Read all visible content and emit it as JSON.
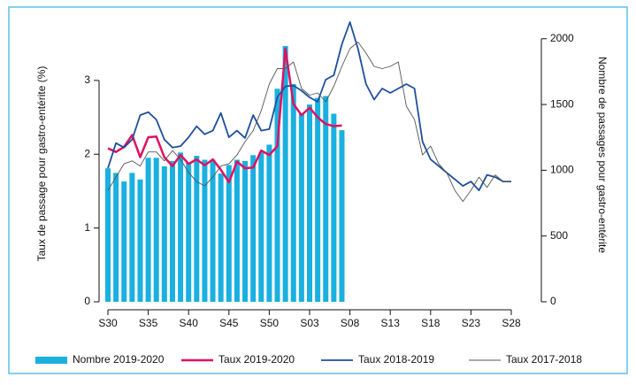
{
  "chart_data": {
    "type": "bar-line",
    "y_label": "Taux de passage pour gastro-entérite (%)",
    "y2_label": "Nombre de passages pour gastro-entérite",
    "categories": [
      "S30",
      null,
      null,
      null,
      null,
      "S35",
      null,
      null,
      null,
      null,
      "S40",
      null,
      null,
      null,
      null,
      "S45",
      null,
      null,
      null,
      null,
      "S50",
      null,
      null,
      null,
      null,
      "S03",
      null,
      null,
      null,
      null,
      "S08",
      null,
      null,
      null,
      null,
      "S13",
      null,
      null,
      null,
      null,
      "S18",
      null,
      null,
      null,
      null,
      "S23",
      null,
      null,
      null,
      null,
      "S28"
    ],
    "ylim": [
      0,
      3.85
    ],
    "yticks": [
      0,
      1,
      2,
      3
    ],
    "y2lim": [
      0,
      2160
    ],
    "y2ticks": [
      0,
      500,
      1000,
      1500,
      2000
    ],
    "series": [
      {
        "name": "Nombre 2019-2020",
        "kind": "bar",
        "axis": "y2",
        "color": "#1ab0e0",
        "values": [
          1015,
          980,
          915,
          980,
          930,
          1095,
          1095,
          1030,
          1070,
          1135,
          1060,
          1110,
          1080,
          1080,
          975,
          1040,
          1080,
          1070,
          1115,
          1135,
          1195,
          1620,
          1945,
          1655,
          1430,
          1500,
          1550,
          1565,
          1430,
          1305,
          null,
          null,
          null,
          null,
          null,
          null,
          null,
          null,
          null,
          null,
          null,
          null,
          null,
          null,
          null,
          null,
          null,
          null,
          null,
          null,
          null
        ]
      },
      {
        "name": "Taux 2019-2020",
        "kind": "line",
        "color": "#e0115f",
        "width": 2.5,
        "values": [
          2.08,
          2.03,
          2.1,
          2.26,
          1.96,
          2.23,
          2.24,
          1.96,
          1.84,
          1.99,
          1.87,
          1.93,
          1.85,
          1.93,
          1.79,
          1.62,
          1.9,
          1.81,
          1.82,
          2.05,
          1.99,
          2.11,
          3.43,
          2.68,
          2.53,
          2.63,
          2.5,
          2.41,
          2.38,
          2.39,
          null,
          null,
          null,
          null,
          null,
          null,
          null,
          null,
          null,
          null,
          null,
          null,
          null,
          null,
          null,
          null,
          null,
          null,
          null,
          null,
          null
        ]
      },
      {
        "name": "Taux 2018-2019",
        "kind": "line",
        "color": "#1f4e9c",
        "width": 1.8,
        "values": [
          1.81,
          2.15,
          2.09,
          2.2,
          2.53,
          2.57,
          2.47,
          2.2,
          2.09,
          2.11,
          2.23,
          2.38,
          2.27,
          2.32,
          2.56,
          2.23,
          2.32,
          2.22,
          2.53,
          2.32,
          2.34,
          2.77,
          2.92,
          2.93,
          2.86,
          2.77,
          2.71,
          3.01,
          3.07,
          3.49,
          3.79,
          3.43,
          2.95,
          2.74,
          2.89,
          2.83,
          2.89,
          2.95,
          2.89,
          2.17,
          1.93,
          1.84,
          1.75,
          1.66,
          1.57,
          1.63,
          1.51,
          1.72,
          1.69,
          1.63,
          1.63
        ]
      },
      {
        "name": "Taux 2017-2018",
        "kind": "line",
        "color": "#555555",
        "width": 0.9,
        "values": [
          1.51,
          1.69,
          1.87,
          1.91,
          1.84,
          2.03,
          2.03,
          1.91,
          2.05,
          1.93,
          1.75,
          1.63,
          1.57,
          1.69,
          1.84,
          1.87,
          1.99,
          2.17,
          2.32,
          2.59,
          2.95,
          3.16,
          3.16,
          3.25,
          2.89,
          2.8,
          2.83,
          2.71,
          2.92,
          3.19,
          3.43,
          3.52,
          3.37,
          3.19,
          3.16,
          3.19,
          3.25,
          2.65,
          2.47,
          1.99,
          2.11,
          1.87,
          1.75,
          1.51,
          1.36,
          1.51,
          1.69,
          1.55,
          1.72,
          1.63,
          1.63
        ]
      }
    ]
  }
}
